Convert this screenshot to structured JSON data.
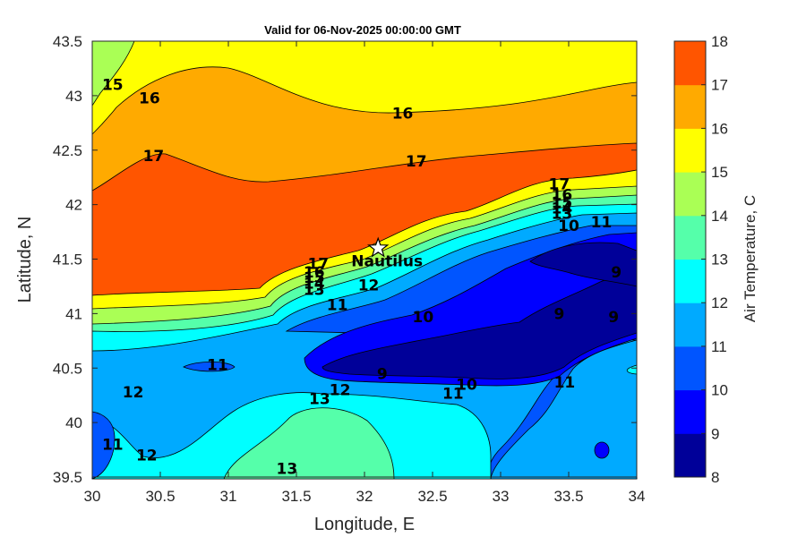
{
  "title": "Valid for 06-Nov-2025 00:00:00 GMT",
  "xlabel": "Longitude, E",
  "ylabel": "Latitude, N",
  "colorbar_label": "Air Temperature, C",
  "x_ticks": [
    "30",
    "30.5",
    "31",
    "31.5",
    "32",
    "32.5",
    "33",
    "33.5",
    "34"
  ],
  "y_ticks": [
    "43.5",
    "43",
    "42.5",
    "42",
    "41.5",
    "41",
    "40.5",
    "40",
    "39.5"
  ],
  "colorbar_ticks": [
    "18",
    "17",
    "16",
    "15",
    "14",
    "13",
    "12",
    "11",
    "10",
    "9",
    "8"
  ],
  "colorbar_colors": [
    "#000099",
    "#0000ff",
    "#0055ff",
    "#00aaff",
    "#00ffff",
    "#55ffaa",
    "#aaff55",
    "#ffff00",
    "#ffaa00",
    "#ff5500",
    "#ff0000"
  ],
  "marker": {
    "name": "Nautilus",
    "lon": 32.1,
    "lat": 41.6
  },
  "contour_labels": [
    {
      "text": "15",
      "lon": 30.15,
      "lat": 43.1
    },
    {
      "text": "16",
      "lon": 30.42,
      "lat": 42.98
    },
    {
      "text": "16",
      "lon": 32.28,
      "lat": 42.84
    },
    {
      "text": "17",
      "lon": 30.45,
      "lat": 42.45
    },
    {
      "text": "17",
      "lon": 32.38,
      "lat": 42.4
    },
    {
      "text": "17",
      "lon": 33.43,
      "lat": 42.19
    },
    {
      "text": "16",
      "lon": 33.45,
      "lat": 42.09
    },
    {
      "text": "15",
      "lon": 33.45,
      "lat": 42.02
    },
    {
      "text": "14",
      "lon": 33.45,
      "lat": 41.97
    },
    {
      "text": "13",
      "lon": 33.45,
      "lat": 41.92
    },
    {
      "text": "10",
      "lon": 33.5,
      "lat": 41.81
    },
    {
      "text": "11",
      "lon": 33.74,
      "lat": 41.84
    },
    {
      "text": "17",
      "lon": 31.66,
      "lat": 41.46
    },
    {
      "text": "16",
      "lon": 31.63,
      "lat": 41.38
    },
    {
      "text": "15",
      "lon": 31.63,
      "lat": 41.33
    },
    {
      "text": "14",
      "lon": 31.63,
      "lat": 41.28
    },
    {
      "text": "13",
      "lon": 31.63,
      "lat": 41.22
    },
    {
      "text": "12",
      "lon": 32.03,
      "lat": 41.26
    },
    {
      "text": "11",
      "lon": 31.8,
      "lat": 41.08
    },
    {
      "text": "10",
      "lon": 32.43,
      "lat": 40.97
    },
    {
      "text": "9",
      "lon": 33.43,
      "lat": 41.0
    },
    {
      "text": "9",
      "lon": 33.83,
      "lat": 40.97
    },
    {
      "text": "9",
      "lon": 33.85,
      "lat": 41.38
    },
    {
      "text": "11",
      "lon": 30.92,
      "lat": 40.53
    },
    {
      "text": "9",
      "lon": 32.13,
      "lat": 40.45
    },
    {
      "text": "12",
      "lon": 30.3,
      "lat": 40.28
    },
    {
      "text": "12",
      "lon": 31.82,
      "lat": 40.3
    },
    {
      "text": "13",
      "lon": 31.67,
      "lat": 40.22
    },
    {
      "text": "11",
      "lon": 32.65,
      "lat": 40.27
    },
    {
      "text": "10",
      "lon": 32.75,
      "lat": 40.35
    },
    {
      "text": "11",
      "lon": 33.47,
      "lat": 40.37
    },
    {
      "text": "11",
      "lon": 30.15,
      "lat": 39.8
    },
    {
      "text": "12",
      "lon": 30.4,
      "lat": 39.7
    },
    {
      "text": "13",
      "lon": 31.43,
      "lat": 39.58
    }
  ]
}
